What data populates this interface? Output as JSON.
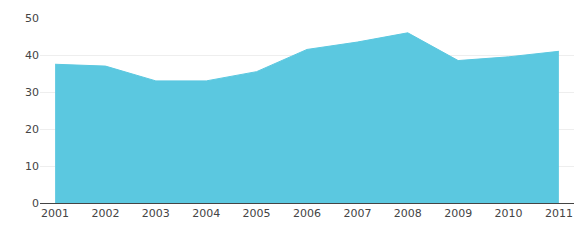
{
  "chart_data": {
    "type": "area",
    "x": [
      2001,
      2002,
      2003,
      2004,
      2005,
      2006,
      2007,
      2008,
      2009,
      2010,
      2011
    ],
    "values": [
      37.5,
      37.0,
      33.0,
      33.0,
      35.5,
      41.5,
      43.5,
      46.0,
      38.5,
      39.5,
      41.0
    ],
    "color": "#5bc8e0",
    "xlim": [
      2000.7,
      2011.3
    ],
    "xticks": [
      2001,
      2002,
      2003,
      2004,
      2005,
      2006,
      2007,
      2008,
      2009,
      2010,
      2011
    ],
    "ylim": [
      0,
      50
    ],
    "yticks": [
      0,
      10,
      20,
      30,
      40,
      50
    ],
    "grid": true
  }
}
